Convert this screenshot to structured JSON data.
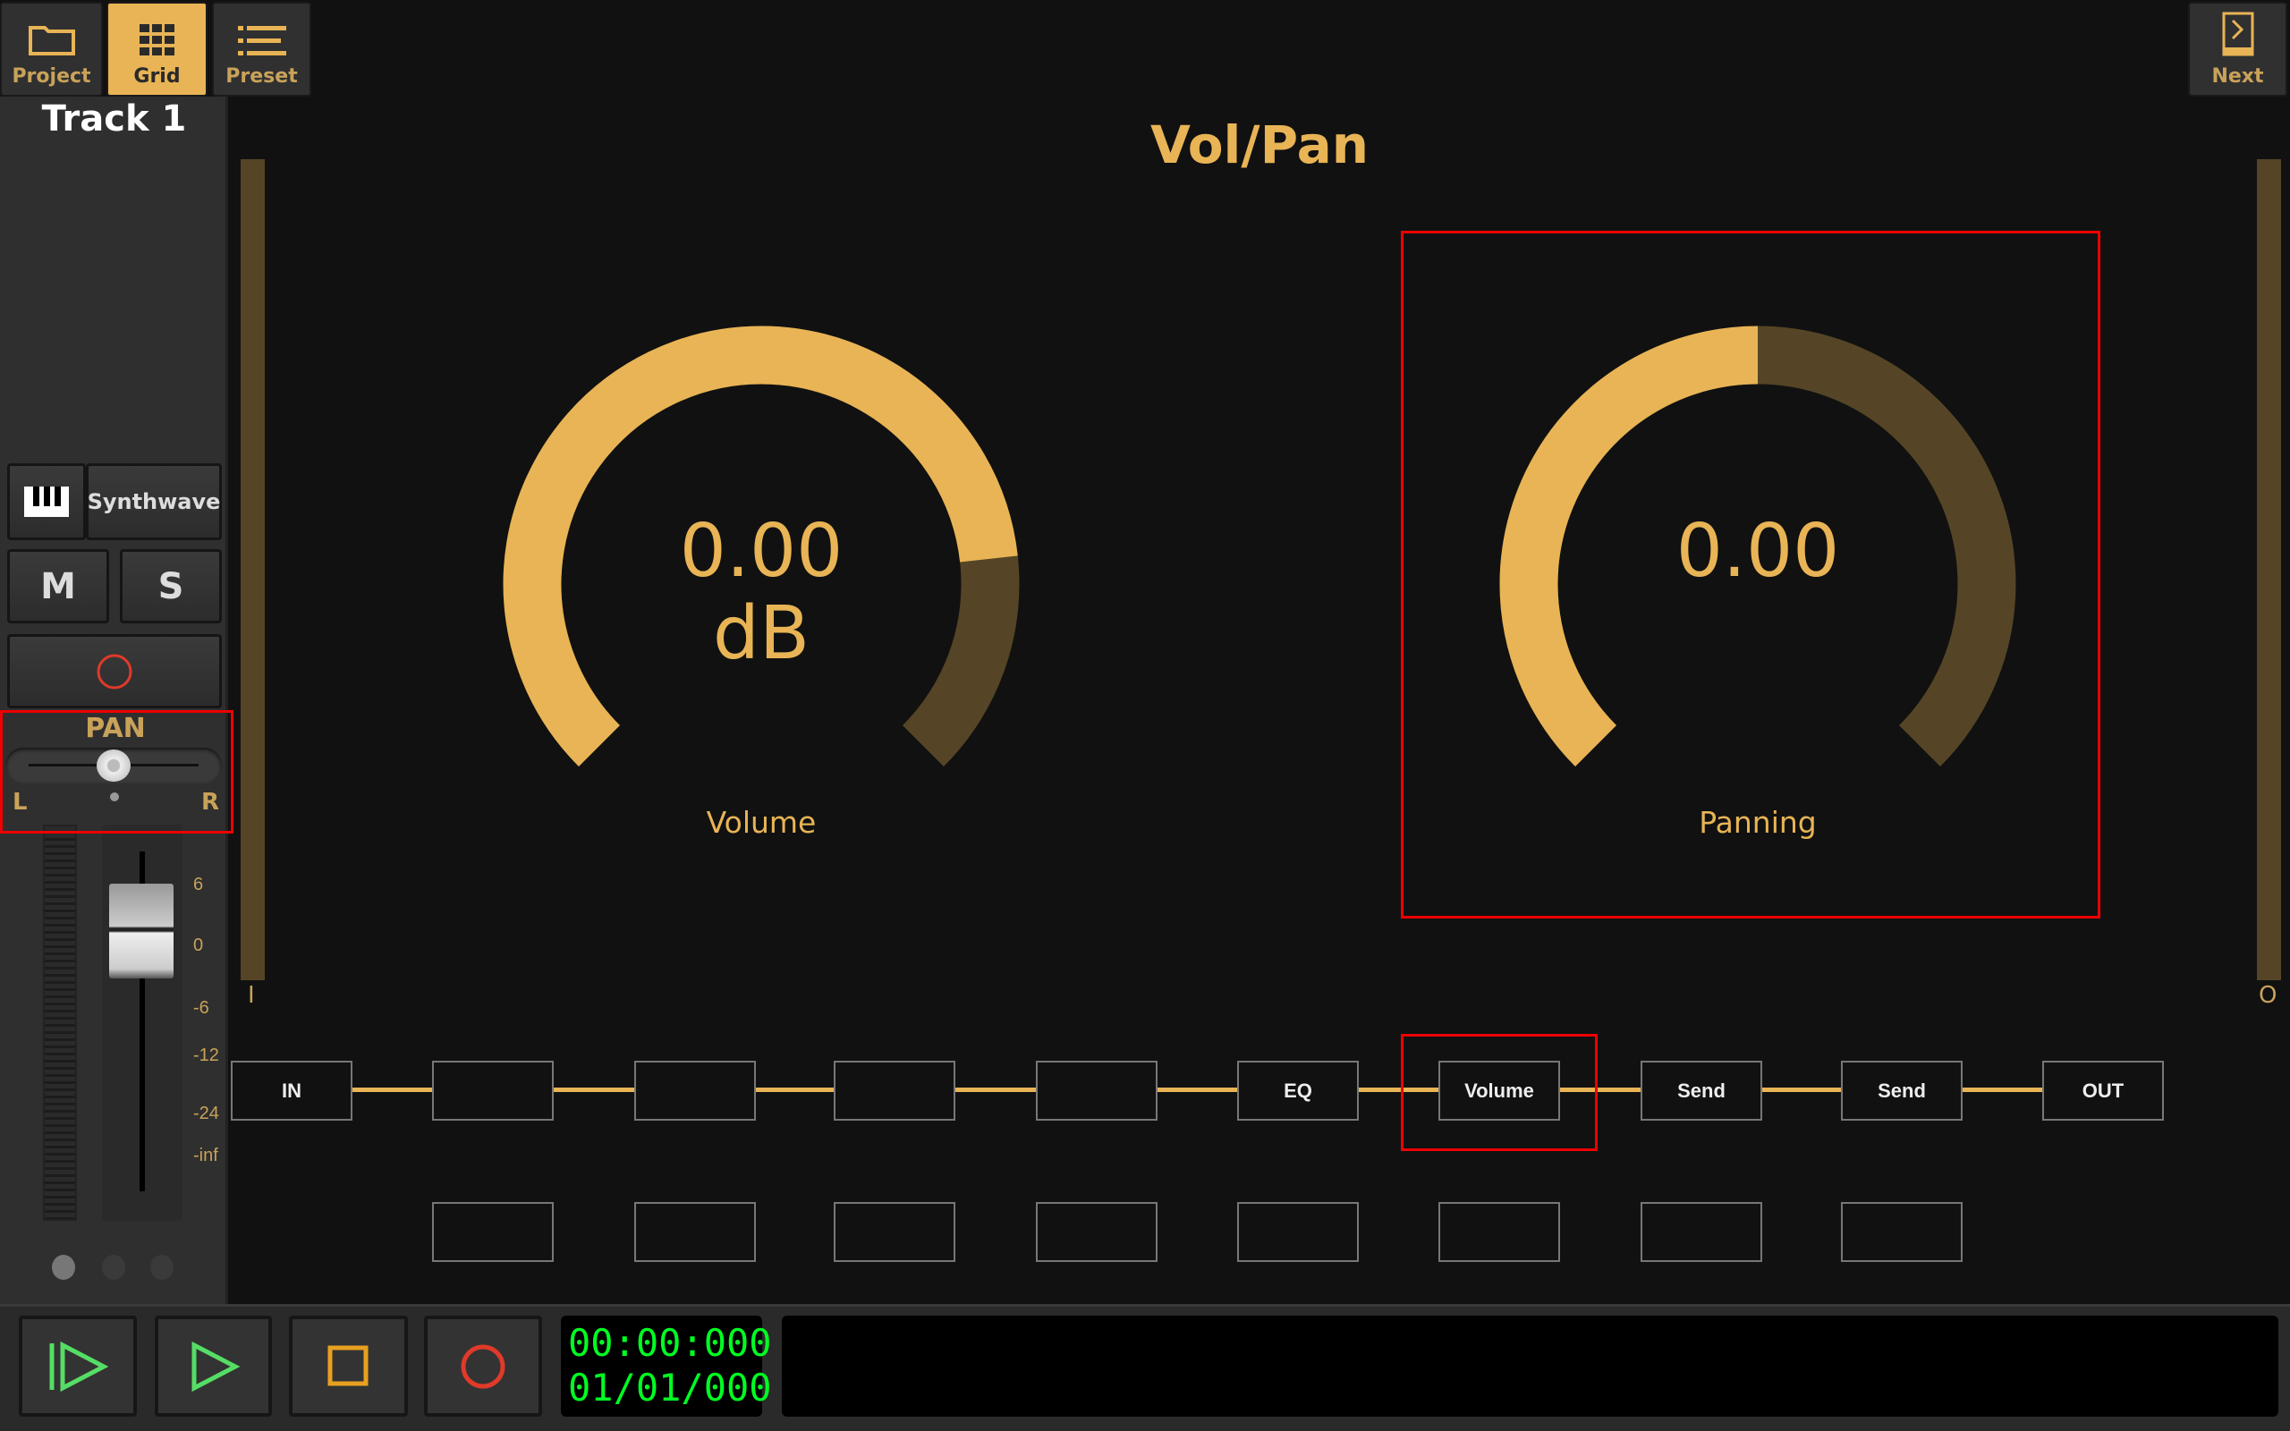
{
  "toolbar": {
    "project": "Project",
    "grid": "Grid",
    "preset": "Preset",
    "next": "Next"
  },
  "track": {
    "title": "Track 1",
    "instrument": "Synthwave",
    "mute": "M",
    "solo": "S",
    "pan": {
      "label": "PAN",
      "left": "L",
      "right": "R",
      "value": 0.5
    },
    "fader_scale": [
      "6",
      "0",
      "-6",
      "-12",
      "-24",
      "-inf"
    ]
  },
  "main": {
    "title": "Vol/Pan",
    "in_label": "I",
    "out_label": "O",
    "volume": {
      "value": "0.00",
      "unit": "dB",
      "label": "Volume",
      "fill": 0.81
    },
    "panning": {
      "value": "0.00",
      "label": "Panning",
      "fill": 0.5
    },
    "chain": [
      "IN",
      "",
      "",
      "",
      "",
      "EQ",
      "Volume",
      "Send",
      "Send",
      "OUT"
    ],
    "chain_second_row": [
      "",
      "",
      "",
      "",
      "",
      "",
      "",
      ""
    ]
  },
  "transport": {
    "time": "00:00:000",
    "position": "01/01/000"
  },
  "colors": {
    "accent": "#e8b455",
    "accent_dim": "#554526",
    "green": "#00ff22",
    "red": "#e03a2a"
  }
}
